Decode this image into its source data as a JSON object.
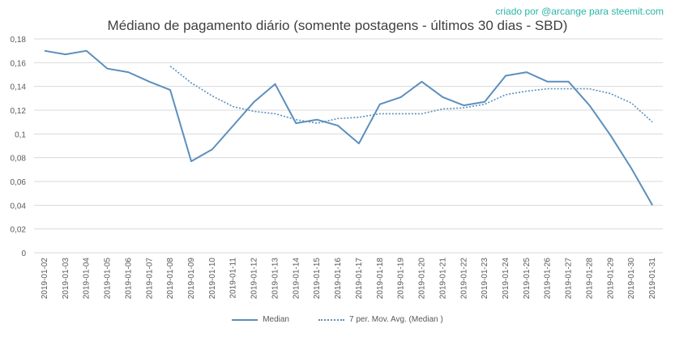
{
  "title": "Médiano de pagamento diário (somente postagens - últimos 30 dias - SBD)",
  "credit": "criado por @arcange para steemit.com",
  "colors": {
    "series": "#5b8fbd",
    "grid": "#d9d9d9",
    "axis_text": "#595959",
    "credit": "#2bb5a8"
  },
  "chart_data": {
    "type": "line",
    "title": "Médiano de pagamento diário (somente postagens - últimos 30 dias - SBD)",
    "xlabel": "",
    "ylabel": "",
    "ylim": [
      0,
      0.18
    ],
    "yticks": [
      "0",
      "0,02",
      "0,04",
      "0,06",
      "0,08",
      "0,1",
      "0,12",
      "0,14",
      "0,16",
      "0,18"
    ],
    "grid": true,
    "legend_position": "bottom",
    "x": [
      "2019-01-02",
      "2019-01-03",
      "2019-01-04",
      "2019-01-05",
      "2019-01-06",
      "2019-01-07",
      "2019-01-08",
      "2019-01-09",
      "2019-01-10",
      "2019-01-11",
      "2019-01-12",
      "2019-01-13",
      "2019-01-14",
      "2019-01-15",
      "2019-01-16",
      "2019-01-17",
      "2019-01-18",
      "2019-01-19",
      "2019-01-20",
      "2019-01-21",
      "2019-01-22",
      "2019-01-23",
      "2019-01-24",
      "2019-01-25",
      "2019-01-26",
      "2019-01-27",
      "2019-01-28",
      "2019-01-29",
      "2019-01-30",
      "2019-01-31"
    ],
    "series": [
      {
        "name": "Median",
        "style": "solid",
        "values": [
          0.17,
          0.167,
          0.17,
          0.155,
          0.152,
          0.144,
          0.137,
          0.077,
          0.087,
          0.107,
          0.127,
          0.142,
          0.109,
          0.112,
          0.107,
          0.092,
          0.125,
          0.131,
          0.144,
          0.131,
          0.124,
          0.127,
          0.149,
          0.152,
          0.144,
          0.144,
          0.124,
          0.099,
          0.071,
          0.04
        ]
      },
      {
        "name": "7 per. Mov. Avg. (Median )",
        "style": "dotted",
        "values": [
          null,
          null,
          null,
          null,
          null,
          null,
          0.157,
          0.143,
          0.132,
          0.123,
          0.119,
          0.117,
          0.112,
          0.109,
          0.113,
          0.114,
          0.117,
          0.117,
          0.117,
          0.121,
          0.122,
          0.125,
          0.133,
          0.136,
          0.138,
          0.138,
          0.138,
          0.134,
          0.126,
          0.11
        ]
      }
    ]
  }
}
